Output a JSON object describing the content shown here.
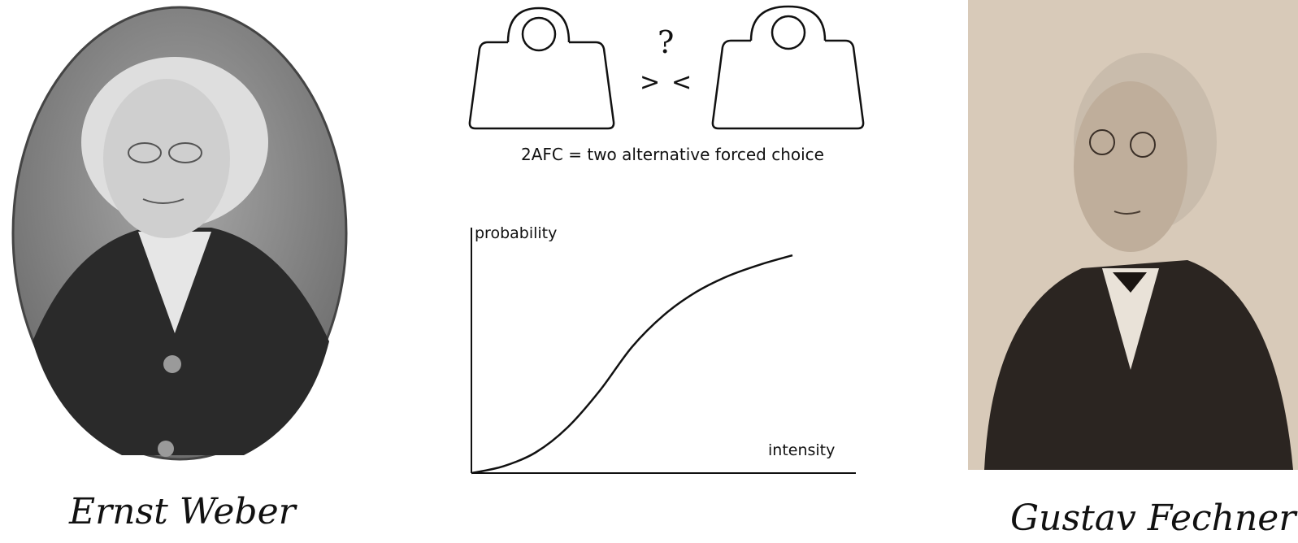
{
  "people": {
    "left_name": "Ernst Weber",
    "right_name": "Gustav Fechner"
  },
  "comparison": {
    "question_mark": "?",
    "greater": ">",
    "less": "<",
    "caption": "2AFC = two alternative forced choice"
  },
  "chart_data": {
    "type": "line",
    "xlabel": "intensity",
    "ylabel": "probability",
    "series": [
      {
        "x": [
          0,
          0.1,
          0.2,
          0.3,
          0.4,
          0.5,
          0.6,
          0.7,
          0.8,
          0.9,
          1.0
        ],
        "values": [
          0.0,
          0.03,
          0.09,
          0.2,
          0.36,
          0.55,
          0.69,
          0.79,
          0.86,
          0.91,
          0.95
        ]
      }
    ]
  },
  "colors": {
    "ink": "#111111",
    "sepia_bg": "#d9ccbd",
    "oval_bg": "#8a8a8a"
  }
}
